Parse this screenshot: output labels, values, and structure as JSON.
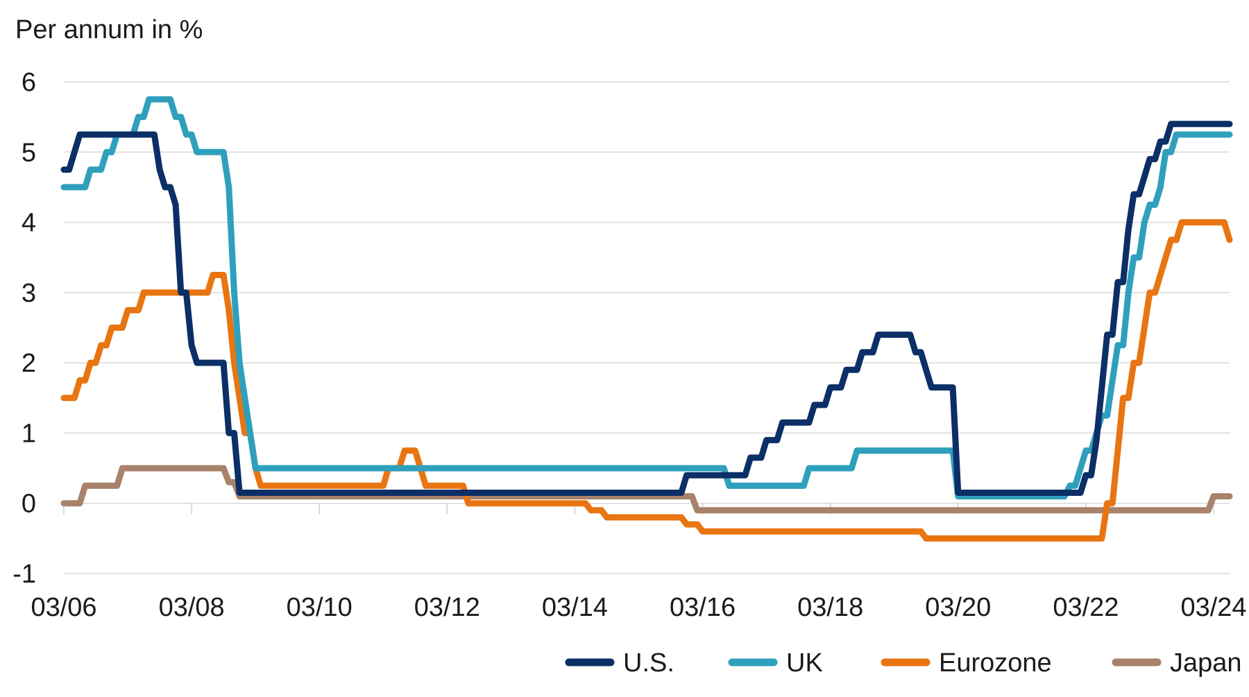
{
  "chart_data": {
    "type": "line",
    "ylabel": "Per annum in %",
    "ylim": [
      -1,
      6
    ],
    "yticks": [
      "6",
      "5",
      "4",
      "3",
      "2",
      "1",
      "0",
      "-1"
    ],
    "xlim": [
      "2006-03",
      "2024-06"
    ],
    "xticks": [
      "03/06",
      "03/08",
      "03/10",
      "03/12",
      "03/14",
      "03/16",
      "03/18",
      "03/20",
      "03/22",
      "03/24"
    ],
    "grid": true,
    "legend_position": "bottom-right",
    "series": [
      {
        "name": "U.S.",
        "color": "#0b2f66",
        "points": [
          [
            "2006-03",
            4.75
          ],
          [
            "2006-04",
            4.75
          ],
          [
            "2006-05",
            5.0
          ],
          [
            "2006-06",
            5.25
          ],
          [
            "2007-08",
            5.25
          ],
          [
            "2007-09",
            4.75
          ],
          [
            "2007-10",
            4.5
          ],
          [
            "2007-11",
            4.5
          ],
          [
            "2007-12",
            4.25
          ],
          [
            "2008-01",
            3.0
          ],
          [
            "2008-02",
            3.0
          ],
          [
            "2008-03",
            2.25
          ],
          [
            "2008-04",
            2.0
          ],
          [
            "2008-09",
            2.0
          ],
          [
            "2008-10",
            1.0
          ],
          [
            "2008-11",
            1.0
          ],
          [
            "2008-12",
            0.15
          ],
          [
            "2015-11",
            0.15
          ],
          [
            "2015-12",
            0.4
          ],
          [
            "2016-11",
            0.4
          ],
          [
            "2016-12",
            0.65
          ],
          [
            "2017-02",
            0.65
          ],
          [
            "2017-03",
            0.9
          ],
          [
            "2017-05",
            0.9
          ],
          [
            "2017-06",
            1.15
          ],
          [
            "2017-11",
            1.15
          ],
          [
            "2017-12",
            1.4
          ],
          [
            "2018-02",
            1.4
          ],
          [
            "2018-03",
            1.65
          ],
          [
            "2018-05",
            1.65
          ],
          [
            "2018-06",
            1.9
          ],
          [
            "2018-08",
            1.9
          ],
          [
            "2018-09",
            2.15
          ],
          [
            "2018-11",
            2.15
          ],
          [
            "2018-12",
            2.4
          ],
          [
            "2019-06",
            2.4
          ],
          [
            "2019-07",
            2.15
          ],
          [
            "2019-08",
            2.15
          ],
          [
            "2019-09",
            1.9
          ],
          [
            "2019-10",
            1.65
          ],
          [
            "2020-02",
            1.65
          ],
          [
            "2020-03",
            0.15
          ],
          [
            "2022-02",
            0.15
          ],
          [
            "2022-03",
            0.4
          ],
          [
            "2022-04",
            0.4
          ],
          [
            "2022-05",
            0.9
          ],
          [
            "2022-06",
            1.65
          ],
          [
            "2022-07",
            2.4
          ],
          [
            "2022-08",
            2.4
          ],
          [
            "2022-09",
            3.15
          ],
          [
            "2022-10",
            3.15
          ],
          [
            "2022-11",
            3.9
          ],
          [
            "2022-12",
            4.4
          ],
          [
            "2023-01",
            4.4
          ],
          [
            "2023-02",
            4.65
          ],
          [
            "2023-03",
            4.9
          ],
          [
            "2023-04",
            4.9
          ],
          [
            "2023-05",
            5.15
          ],
          [
            "2023-06",
            5.15
          ],
          [
            "2023-07",
            5.4
          ],
          [
            "2024-06",
            5.4
          ]
        ]
      },
      {
        "name": "UK",
        "color": "#2fa0bc",
        "points": [
          [
            "2006-03",
            4.5
          ],
          [
            "2006-07",
            4.5
          ],
          [
            "2006-08",
            4.75
          ],
          [
            "2006-10",
            4.75
          ],
          [
            "2006-11",
            5.0
          ],
          [
            "2006-12",
            5.0
          ],
          [
            "2007-01",
            5.25
          ],
          [
            "2007-04",
            5.25
          ],
          [
            "2007-05",
            5.5
          ],
          [
            "2007-06",
            5.5
          ],
          [
            "2007-07",
            5.75
          ],
          [
            "2007-11",
            5.75
          ],
          [
            "2007-12",
            5.5
          ],
          [
            "2008-01",
            5.5
          ],
          [
            "2008-02",
            5.25
          ],
          [
            "2008-03",
            5.25
          ],
          [
            "2008-04",
            5.0
          ],
          [
            "2008-09",
            5.0
          ],
          [
            "2008-10",
            4.5
          ],
          [
            "2008-11",
            3.0
          ],
          [
            "2008-12",
            2.0
          ],
          [
            "2009-01",
            1.5
          ],
          [
            "2009-02",
            1.0
          ],
          [
            "2009-03",
            0.5
          ],
          [
            "2016-07",
            0.5
          ],
          [
            "2016-08",
            0.25
          ],
          [
            "2017-10",
            0.25
          ],
          [
            "2017-11",
            0.5
          ],
          [
            "2018-07",
            0.5
          ],
          [
            "2018-08",
            0.75
          ],
          [
            "2020-02",
            0.75
          ],
          [
            "2020-03",
            0.1
          ],
          [
            "2021-11",
            0.1
          ],
          [
            "2021-12",
            0.25
          ],
          [
            "2022-01",
            0.25
          ],
          [
            "2022-02",
            0.5
          ],
          [
            "2022-03",
            0.75
          ],
          [
            "2022-04",
            0.75
          ],
          [
            "2022-05",
            1.0
          ],
          [
            "2022-06",
            1.25
          ],
          [
            "2022-07",
            1.25
          ],
          [
            "2022-08",
            1.75
          ],
          [
            "2022-09",
            2.25
          ],
          [
            "2022-10",
            2.25
          ],
          [
            "2022-11",
            3.0
          ],
          [
            "2022-12",
            3.5
          ],
          [
            "2023-01",
            3.5
          ],
          [
            "2023-02",
            4.0
          ],
          [
            "2023-03",
            4.25
          ],
          [
            "2023-04",
            4.25
          ],
          [
            "2023-05",
            4.5
          ],
          [
            "2023-06",
            5.0
          ],
          [
            "2023-07",
            5.0
          ],
          [
            "2023-08",
            5.25
          ],
          [
            "2024-06",
            5.25
          ]
        ]
      },
      {
        "name": "Eurozone",
        "color": "#e87511",
        "points": [
          [
            "2006-03",
            1.5
          ],
          [
            "2006-05",
            1.5
          ],
          [
            "2006-06",
            1.75
          ],
          [
            "2006-07",
            1.75
          ],
          [
            "2006-08",
            2.0
          ],
          [
            "2006-09",
            2.0
          ],
          [
            "2006-10",
            2.25
          ],
          [
            "2006-11",
            2.25
          ],
          [
            "2006-12",
            2.5
          ],
          [
            "2007-02",
            2.5
          ],
          [
            "2007-03",
            2.75
          ],
          [
            "2007-05",
            2.75
          ],
          [
            "2007-06",
            3.0
          ],
          [
            "2008-06",
            3.0
          ],
          [
            "2008-07",
            3.25
          ],
          [
            "2008-09",
            3.25
          ],
          [
            "2008-10",
            2.75
          ],
          [
            "2008-11",
            2.0
          ],
          [
            "2008-12",
            1.5
          ],
          [
            "2009-01",
            1.0
          ],
          [
            "2009-02",
            1.0
          ],
          [
            "2009-03",
            0.5
          ],
          [
            "2009-04",
            0.25
          ],
          [
            "2011-03",
            0.25
          ],
          [
            "2011-04",
            0.5
          ],
          [
            "2011-06",
            0.5
          ],
          [
            "2011-07",
            0.75
          ],
          [
            "2011-09",
            0.75
          ],
          [
            "2011-10",
            0.5
          ],
          [
            "2011-11",
            0.25
          ],
          [
            "2012-06",
            0.25
          ],
          [
            "2012-07",
            0.0
          ],
          [
            "2014-05",
            0.0
          ],
          [
            "2014-06",
            -0.1
          ],
          [
            "2014-08",
            -0.1
          ],
          [
            "2014-09",
            -0.2
          ],
          [
            "2015-11",
            -0.2
          ],
          [
            "2015-12",
            -0.3
          ],
          [
            "2016-02",
            -0.3
          ],
          [
            "2016-03",
            -0.4
          ],
          [
            "2019-08",
            -0.4
          ],
          [
            "2019-09",
            -0.5
          ],
          [
            "2022-06",
            -0.5
          ],
          [
            "2022-07",
            0.0
          ],
          [
            "2022-08",
            0.0
          ],
          [
            "2022-09",
            0.75
          ],
          [
            "2022-10",
            1.5
          ],
          [
            "2022-11",
            1.5
          ],
          [
            "2022-12",
            2.0
          ],
          [
            "2023-01",
            2.0
          ],
          [
            "2023-02",
            2.5
          ],
          [
            "2023-03",
            3.0
          ],
          [
            "2023-04",
            3.0
          ],
          [
            "2023-05",
            3.25
          ],
          [
            "2023-06",
            3.5
          ],
          [
            "2023-07",
            3.75
          ],
          [
            "2023-08",
            3.75
          ],
          [
            "2023-09",
            4.0
          ],
          [
            "2024-05",
            4.0
          ],
          [
            "2024-06",
            3.75
          ]
        ]
      },
      {
        "name": "Japan",
        "color": "#a8826a",
        "points": [
          [
            "2006-03",
            0.0
          ],
          [
            "2006-06",
            0.0
          ],
          [
            "2006-07",
            0.25
          ],
          [
            "2007-01",
            0.25
          ],
          [
            "2007-02",
            0.5
          ],
          [
            "2008-09",
            0.5
          ],
          [
            "2008-10",
            0.3
          ],
          [
            "2008-11",
            0.3
          ],
          [
            "2008-12",
            0.1
          ],
          [
            "2016-01",
            0.1
          ],
          [
            "2016-02",
            -0.1
          ],
          [
            "2024-02",
            -0.1
          ],
          [
            "2024-03",
            0.1
          ],
          [
            "2024-06",
            0.1
          ]
        ]
      }
    ]
  }
}
